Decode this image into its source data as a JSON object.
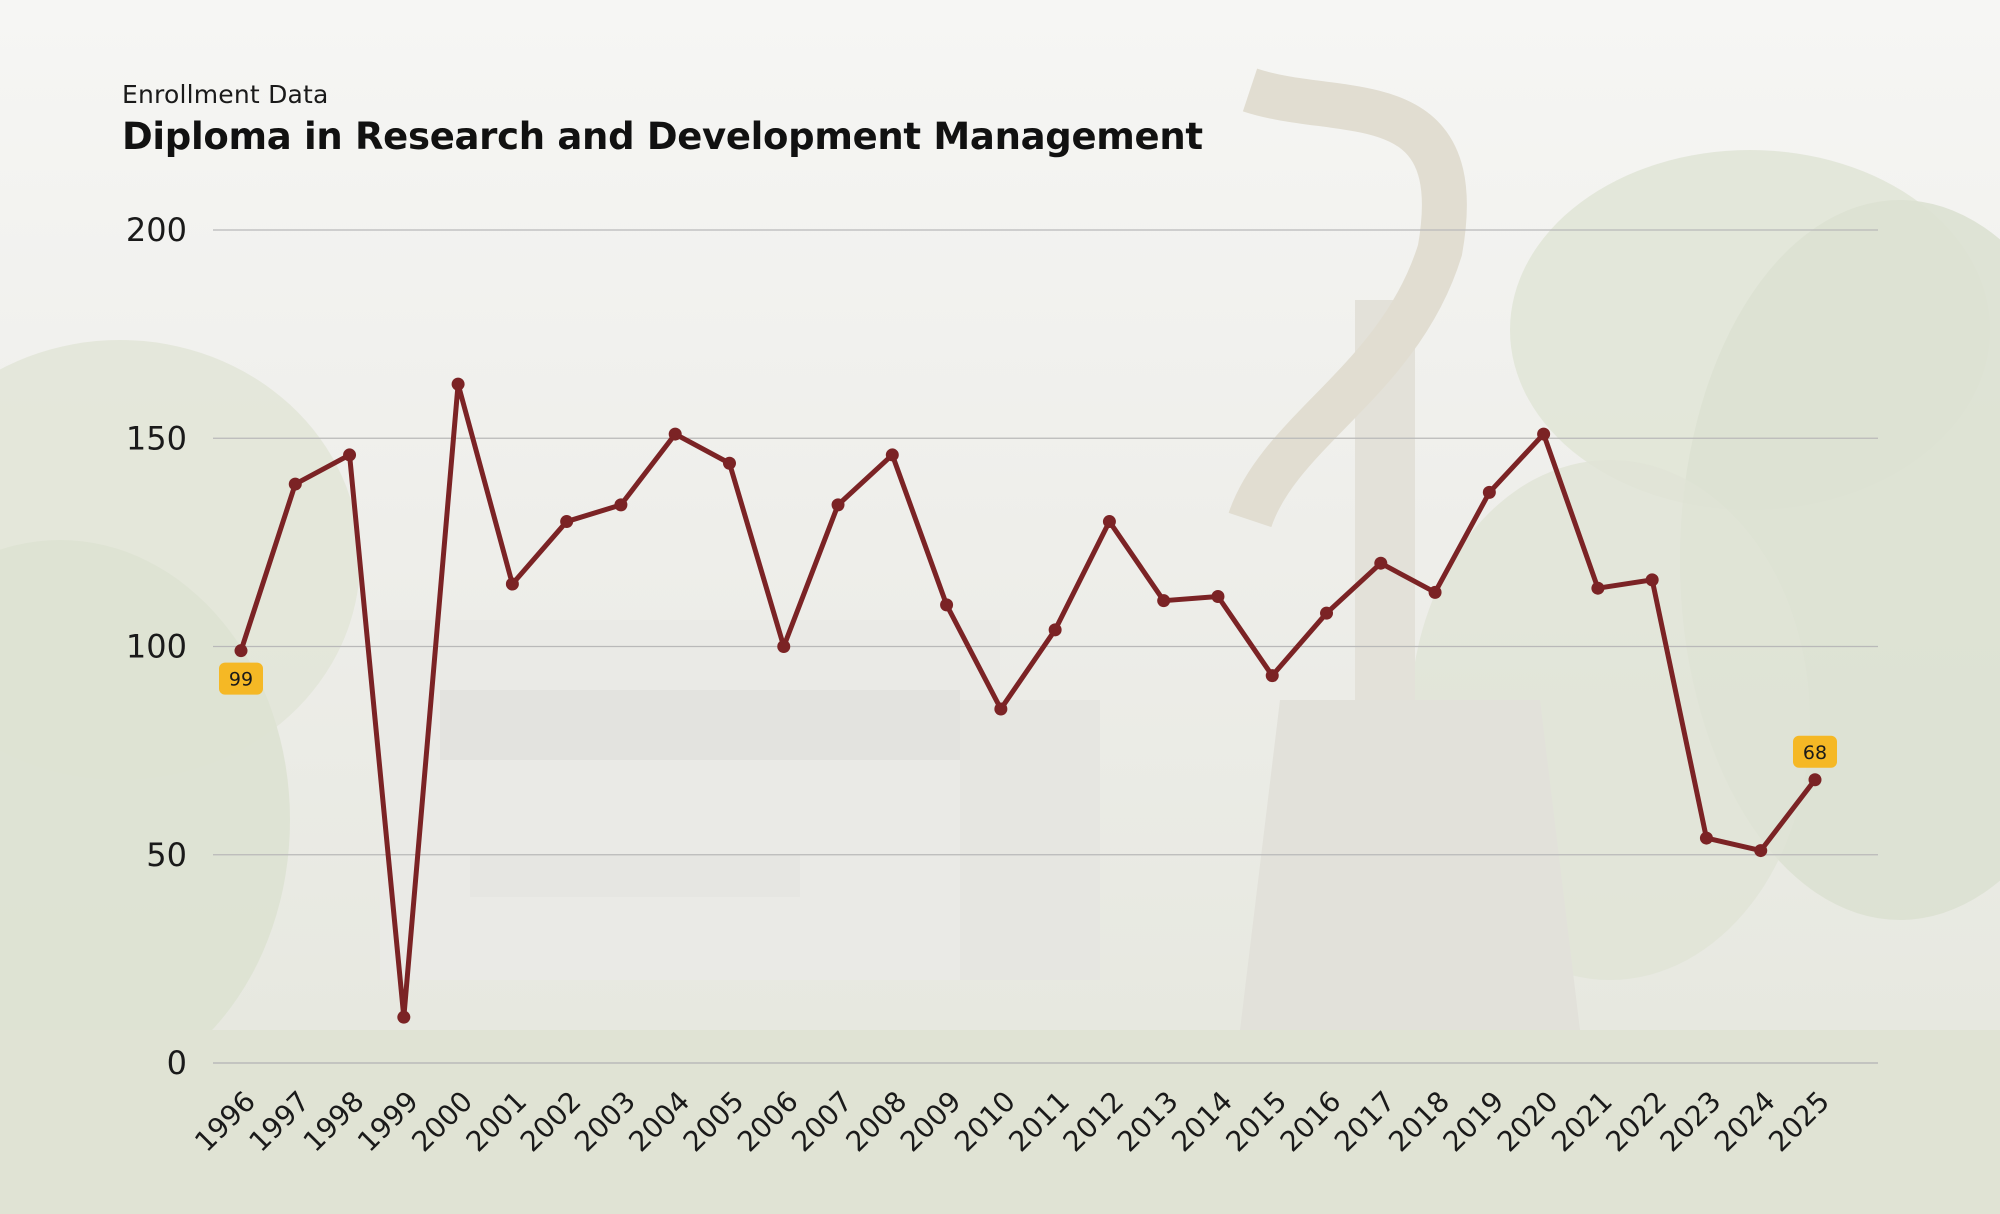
{
  "header": {
    "subtitle": "Enrollment Data",
    "title": "Diploma in Research and Development Management"
  },
  "colors": {
    "line": "#7b2325",
    "label_bg": "#f5b825",
    "grid": "#b9b9b9"
  },
  "chart_data": {
    "type": "line",
    "title": "Diploma in Research and Development Management",
    "subtitle": "Enrollment Data",
    "xlabel": "",
    "ylabel": "",
    "ylim": [
      0,
      200
    ],
    "yticks": [
      0,
      50,
      100,
      150,
      200
    ],
    "grid": true,
    "categories": [
      "1996",
      "1997",
      "1998",
      "1999",
      "2000",
      "2001",
      "2002",
      "2003",
      "2004",
      "2005",
      "2006",
      "2007",
      "2008",
      "2009",
      "2010",
      "2011",
      "2012",
      "2013",
      "2014",
      "2015",
      "2016",
      "2017",
      "2018",
      "2019",
      "2020",
      "2021",
      "2022",
      "2023",
      "2024",
      "2025"
    ],
    "series": [
      {
        "values": [
          99,
          139,
          146,
          11,
          163,
          115,
          130,
          134,
          151,
          144,
          100,
          134,
          146,
          110,
          85,
          104,
          130,
          111,
          112,
          93,
          108,
          120,
          113,
          137,
          151,
          114,
          116,
          54,
          51,
          68
        ]
      }
    ],
    "data_labels": [
      {
        "category": "1996",
        "text": "99"
      },
      {
        "category": "2025",
        "text": "68"
      }
    ]
  }
}
